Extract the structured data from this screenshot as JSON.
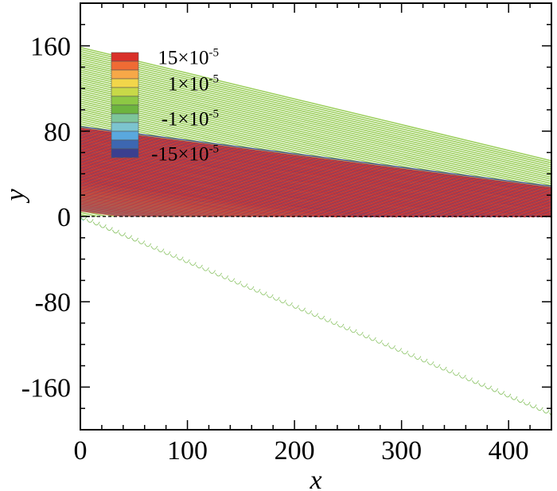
{
  "chart_data": {
    "type": "heatmap",
    "title": "",
    "xlabel": "x",
    "ylabel": "y",
    "xlim": [
      0,
      440
    ],
    "ylim": [
      -200,
      200
    ],
    "x_ticks": [
      0,
      100,
      200,
      300,
      400
    ],
    "y_ticks": [
      160,
      80,
      0,
      -80,
      -160
    ],
    "x_tick_labels": [
      "0",
      "100",
      "200",
      "300",
      "400"
    ],
    "y_tick_labels": [
      "160",
      "80",
      "0",
      "-80",
      "-160"
    ],
    "grid": false,
    "legend_placement": "top-left",
    "contour_levels": [
      {
        "mantissa": "15",
        "exponent": "-5",
        "color": "#d9312a"
      },
      {
        "mantissa": "",
        "exponent": "",
        "color": "#ef6b34"
      },
      {
        "mantissa": "",
        "exponent": "",
        "color": "#f7a848"
      },
      {
        "mantissa": "1",
        "exponent": "-5",
        "color": "#f2d64a"
      },
      {
        "mantissa": "",
        "exponent": "",
        "color": "#c8d948"
      },
      {
        "mantissa": "",
        "exponent": "",
        "color": "#8dc844"
      },
      {
        "mantissa": "",
        "exponent": "",
        "color": "#6db43f"
      },
      {
        "mantissa": "-1",
        "exponent": "-5",
        "color": "#7dc59a"
      },
      {
        "mantissa": "",
        "exponent": "",
        "color": "#7cc4cf"
      },
      {
        "mantissa": "",
        "exponent": "",
        "color": "#5aa8de"
      },
      {
        "mantissa": "",
        "exponent": "",
        "color": "#3d67b1"
      },
      {
        "mantissa": "-15",
        "exponent": "-5",
        "color": "#3b3f8f"
      }
    ],
    "wave_field": {
      "y_top": 0,
      "lower_boundary_slope": -0.42,
      "inner_boundary_slope": -0.235,
      "crest_spacing_x": 8,
      "crest_slope": -1.6
    }
  }
}
